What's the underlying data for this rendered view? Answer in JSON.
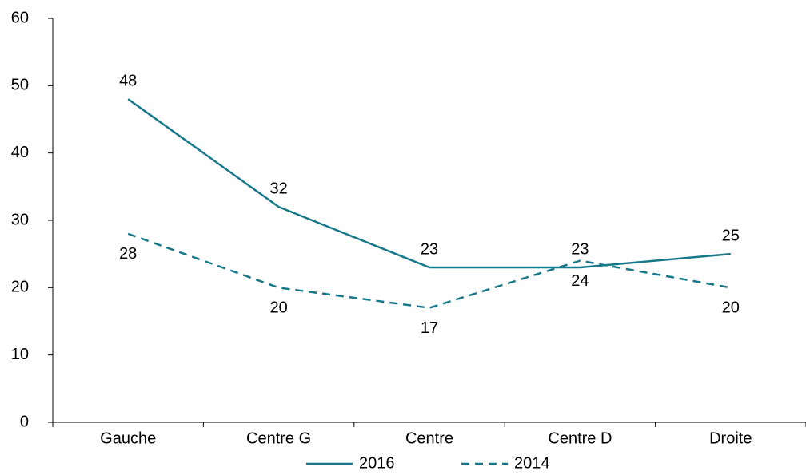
{
  "chart_data": {
    "type": "line",
    "categories": [
      "Gauche",
      "Centre G",
      "Centre",
      "Centre D",
      "Droite"
    ],
    "series": [
      {
        "name": "2016",
        "color": "#17788a",
        "dash": false,
        "values": [
          48,
          32,
          23,
          23,
          25
        ]
      },
      {
        "name": "2014",
        "color": "#17788a",
        "dash": true,
        "values": [
          28,
          20,
          17,
          24,
          20
        ]
      }
    ],
    "ylim": [
      0,
      60
    ],
    "yticks": [
      0,
      10,
      20,
      30,
      40,
      50,
      60
    ],
    "grid": false,
    "legend": "bottom"
  }
}
